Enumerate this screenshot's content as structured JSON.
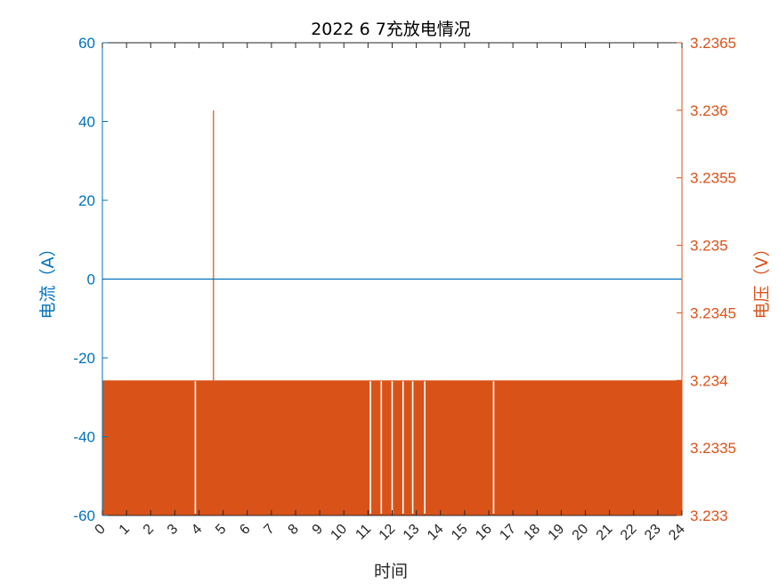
{
  "chart_data": {
    "type": "line",
    "title": "2022   6   7充放电情况",
    "xlabel": "时间",
    "ylabel_left": "电流（A）",
    "ylabel_right": "电压（V）",
    "xlim": [
      0,
      24
    ],
    "ylim_left": [
      -60,
      60
    ],
    "ylim_right": [
      3.233,
      3.2365
    ],
    "x_ticks": [
      "0",
      "1",
      "2",
      "3",
      "4",
      "5",
      "6",
      "7",
      "8",
      "9",
      "10",
      "11",
      "12",
      "13",
      "14",
      "15",
      "16",
      "17",
      "18",
      "19",
      "20",
      "21",
      "22",
      "23",
      "24"
    ],
    "y_ticks_left": [
      "60",
      "40",
      "20",
      "0",
      "-20",
      "-40",
      "-60"
    ],
    "y_ticks_right": [
      "3.2365",
      "3.236",
      "3.2355",
      "3.235",
      "3.2345",
      "3.234",
      "3.2335",
      "3.233"
    ],
    "grid": false,
    "colors": {
      "current": "#0072BD",
      "voltage": "#D95319"
    },
    "series": [
      {
        "axis": "left",
        "x": [
          0,
          24
        ],
        "y": [
          0,
          0
        ]
      },
      {
        "axis": "right",
        "pattern": "rapid oscillation between 3.233 and 3.234 across the full day",
        "high_value": 3.234,
        "low_value": 3.233,
        "spike": {
          "x": 4.6,
          "y": 3.236
        },
        "gaps_x": [
          3.85,
          11.1,
          11.55,
          12.0,
          12.45,
          12.85,
          13.35,
          16.2
        ]
      }
    ]
  }
}
